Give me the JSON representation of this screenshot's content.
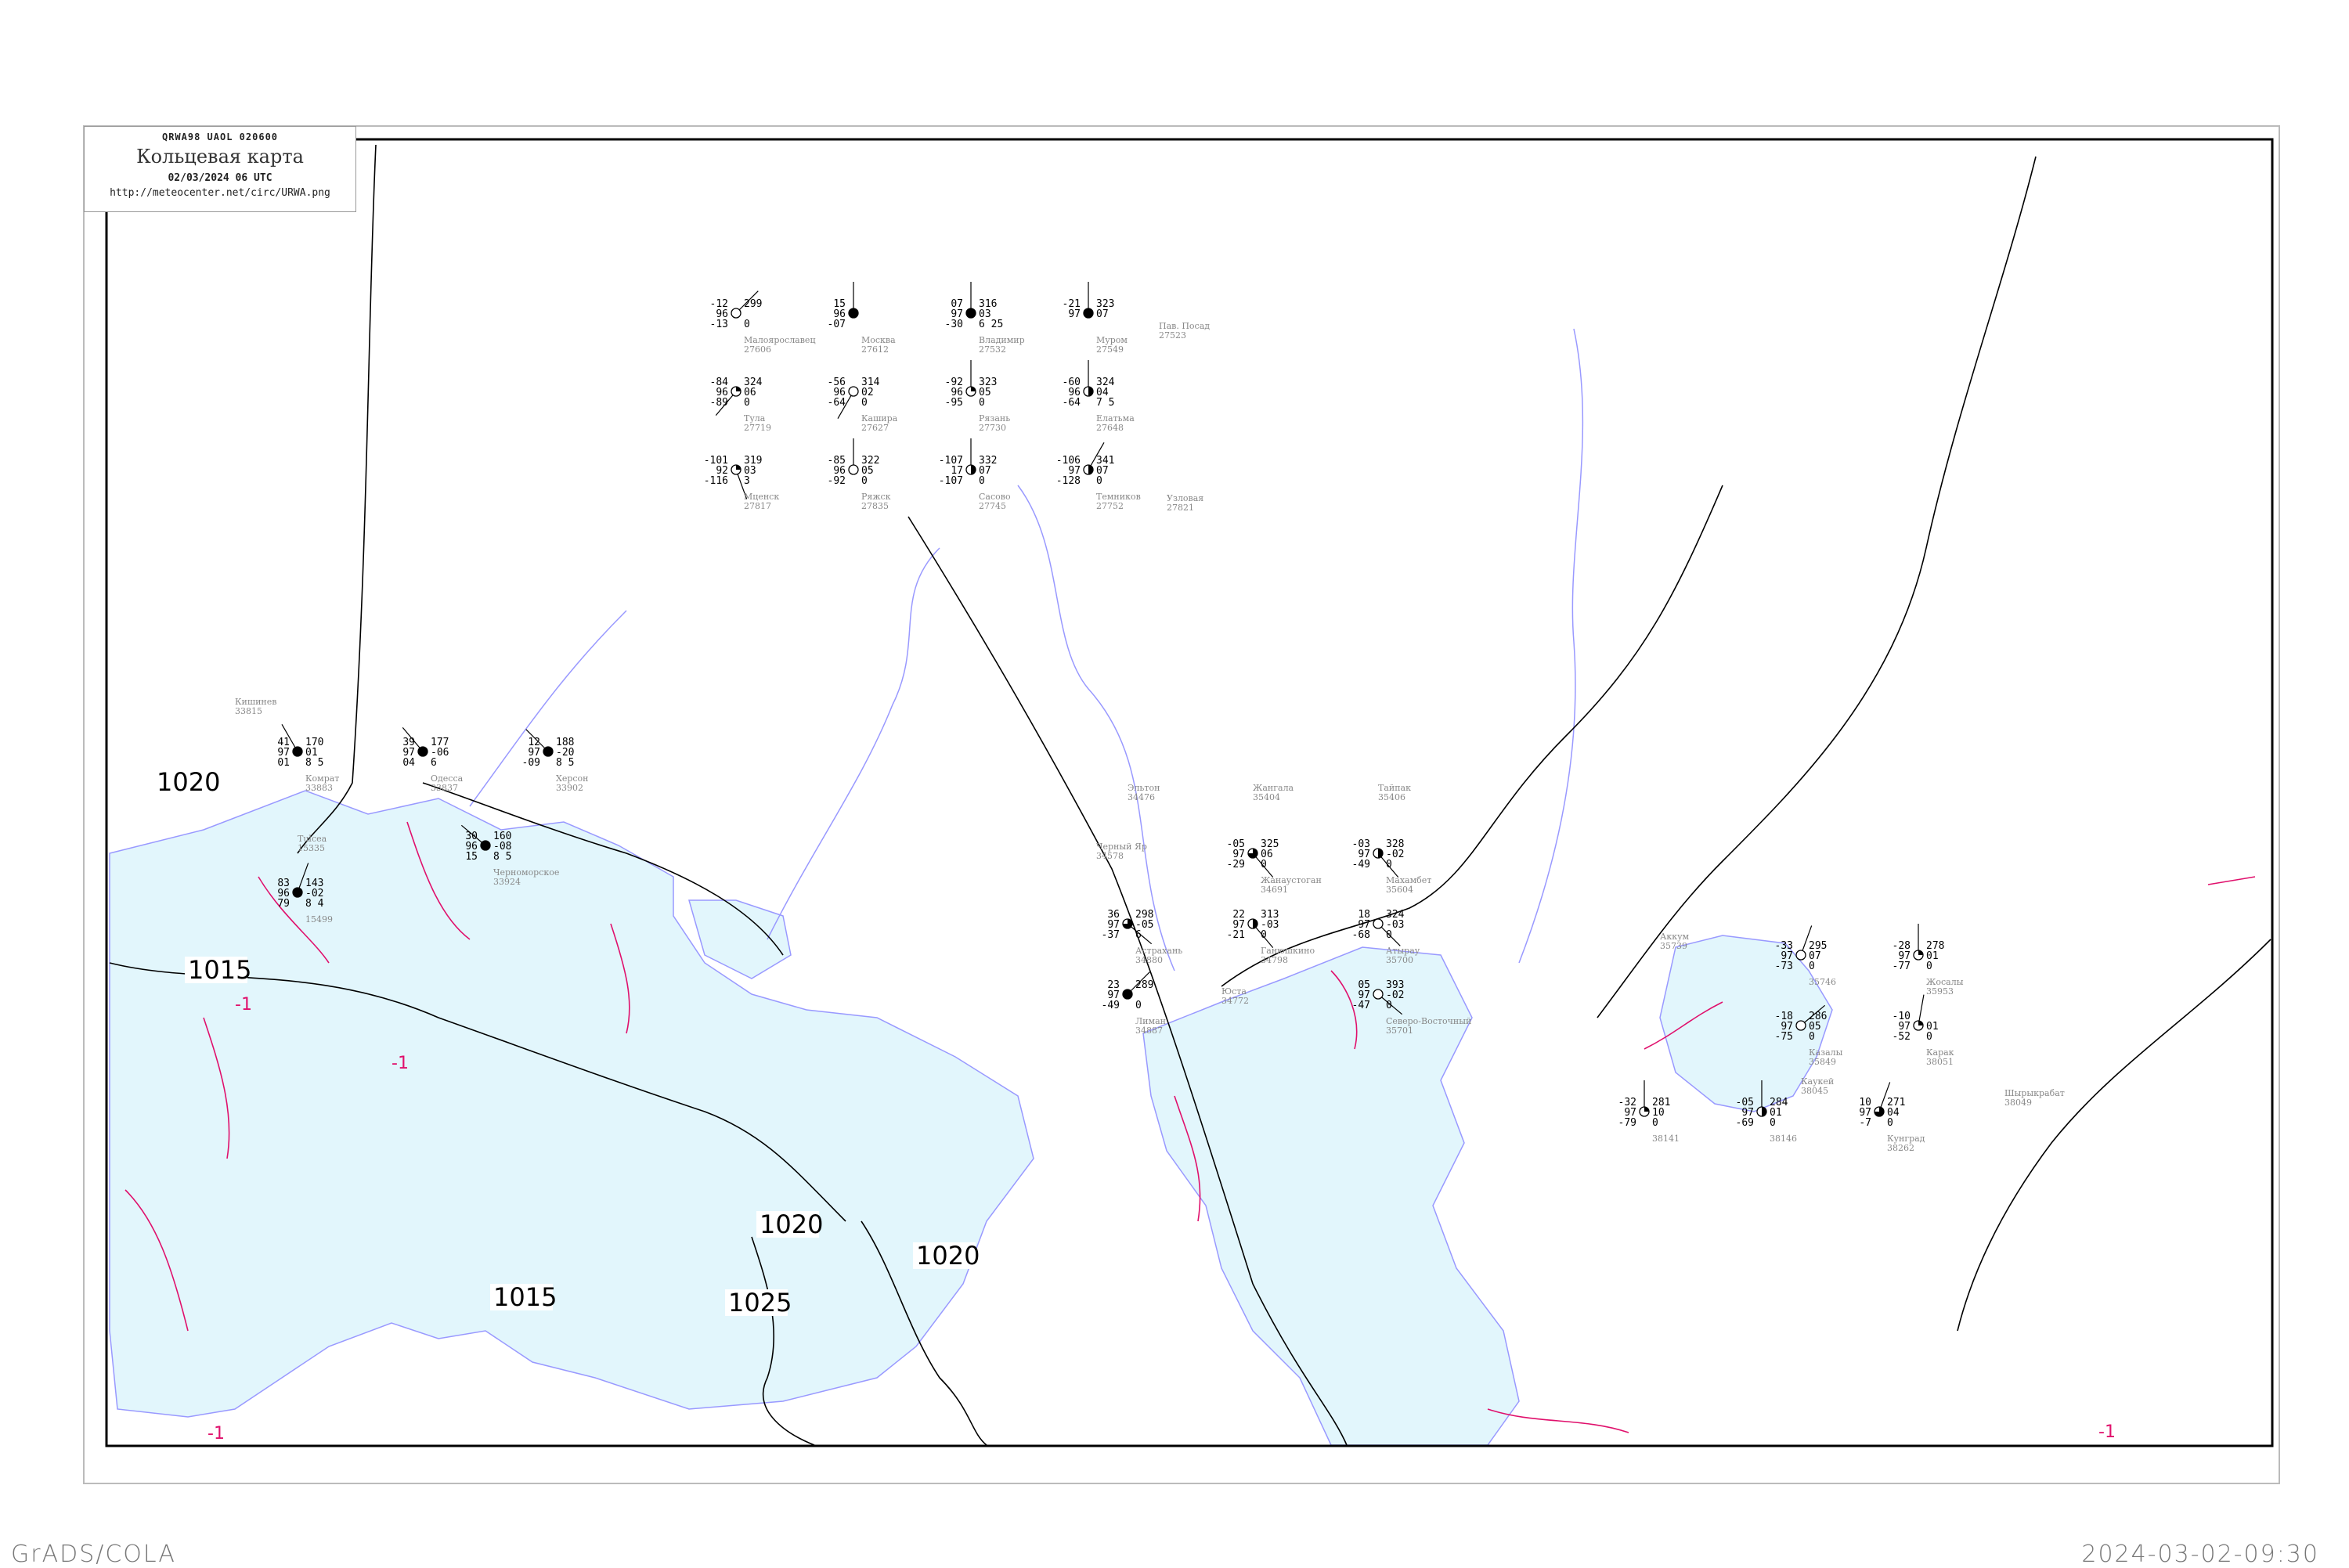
{
  "header": {
    "code": "QRWA98   UAOL   020600",
    "title": "Кольцевая карта",
    "datetime": "02/03/2024 06 UTC",
    "url": "http://meteocenter.net/circ/URWA.png"
  },
  "footer": {
    "left": "GrADS/COLA",
    "right": "2024-03-02-09:30"
  },
  "colors": {
    "isobar": "#000000",
    "isallobar": "#e0106c",
    "water": "#e2f6fc",
    "coastline": "#9999ff",
    "station_name": "#888888",
    "fog_highlight": "#fff59a",
    "precip_highlight": "#3399ff"
  },
  "isobar_labels": [
    "1020",
    "1015",
    "1015",
    "1020",
    "1025",
    "1020"
  ],
  "isallobar_labels": [
    "-1",
    "-1",
    "-1",
    "-1"
  ],
  "stations": [
    {
      "name": "Комрат",
      "id": "33883",
      "tl": "41",
      "ml": "97",
      "bl": "01",
      "tr": "170",
      "mr": "01",
      "br": "8 5",
      "cover": 1,
      "wind_dir": 330
    },
    {
      "name": "Одесса",
      "id": "33837",
      "tl": "39",
      "ml": "97",
      "bl": "04",
      "tr": "177",
      "mr": "-06",
      "br": "6",
      "cover": 1,
      "wind_dir": 320
    },
    {
      "name": "Херсон",
      "id": "33902",
      "tl": "12",
      "ml": "97",
      "bl": "-09",
      "tr": "188",
      "mr": "-20",
      "br": "8 5",
      "cover": 1,
      "wind_dir": 315
    },
    {
      "name": "Черноморское",
      "id": "33924",
      "tl": "30",
      "ml": "96",
      "bl": "15",
      "tr": "160",
      "mr": "-08",
      "br": "8 5",
      "cover": 1,
      "wind_dir": 310
    },
    {
      "name": "",
      "id": "15499",
      "tl": "83",
      "ml": "96",
      "bl": "79",
      "tr": "143",
      "mr": "-02",
      "br": "8 4",
      "cover": 1,
      "wind_dir": 20
    },
    {
      "name": "Жанаустоган",
      "id": "34691",
      "tl": "-05",
      "ml": "97",
      "bl": "-29",
      "tr": "325",
      "mr": "06",
      "br": "0",
      "cover": 0.75,
      "wind_dir": 140
    },
    {
      "name": "Ганюшкино",
      "id": "34798",
      "tl": "22",
      "ml": "97",
      "bl": "-21",
      "tr": "313",
      "mr": "-03",
      "br": "0",
      "cover": 0.5,
      "wind_dir": 140
    },
    {
      "name": "Астрахань",
      "id": "34880",
      "tl": "36",
      "ml": "97",
      "bl": "-37",
      "tr": "298",
      "mr": "-05",
      "br": "6",
      "cover": 0.75,
      "wind_dir": 130
    },
    {
      "name": "Лиман",
      "id": "34887",
      "tl": "23",
      "ml": "97",
      "bl": "-49",
      "tr": "289",
      "mr": "",
      "br": "0",
      "cover": 1,
      "wind_dir": 45
    },
    {
      "name": "Махамбет",
      "id": "35604",
      "tl": "-03",
      "ml": "97",
      "bl": "-49",
      "tr": "328",
      "mr": "-02",
      "br": "0",
      "cover": 0.5,
      "wind_dir": 140
    },
    {
      "name": "Атырау",
      "id": "35700",
      "tl": "18",
      "ml": "97",
      "bl": "-68",
      "tr": "324",
      "mr": "-03",
      "br": "0",
      "cover": 0,
      "wind_dir": 135
    },
    {
      "name": "Северо-Восточный",
      "id": "35701",
      "tl": "05",
      "ml": "97",
      "bl": "-47",
      "tr": "393",
      "mr": "-02",
      "br": "0",
      "cover": 0,
      "wind_dir": 130
    },
    {
      "name": "Москва",
      "id": "27612",
      "tl": "15",
      "ml": "96",
      "bl": "-07",
      "tr": "",
      "mr": "",
      "br": "",
      "cover": 1,
      "wind_dir": 0
    },
    {
      "name": "Владимир",
      "id": "27532",
      "tl": "07",
      "ml": "97",
      "bl": "-30",
      "tr": "316",
      "mr": "03",
      "br": "6 25",
      "cover": 1,
      "wind_dir": 0
    },
    {
      "name": "Малоярославец",
      "id": "27606",
      "tl": "-12",
      "ml": "96",
      "bl": "-13",
      "tr": "299",
      "mr": "",
      "br": "0",
      "cover": 0,
      "wind_dir": 45
    },
    {
      "name": "Кашира",
      "id": "27627",
      "tl": "-56",
      "ml": "96",
      "bl": "-64",
      "tr": "314",
      "mr": "02",
      "br": "0",
      "cover": 0,
      "wind_dir": 210
    },
    {
      "name": "Рязань",
      "id": "27730",
      "tl": "-92",
      "ml": "96",
      "bl": "-95",
      "tr": "323",
      "mr": "05",
      "br": "0",
      "cover": 0.25,
      "wind_dir": 0
    },
    {
      "name": "Тула",
      "id": "27719",
      "tl": "-84",
      "ml": "96",
      "bl": "-89",
      "tr": "324",
      "mr": "06",
      "br": "0",
      "cover": 0.25,
      "wind_dir": 220
    },
    {
      "name": "Сасово",
      "id": "27745",
      "tl": "-107",
      "ml": "17",
      "bl": "-107",
      "tr": "332",
      "mr": "07",
      "br": "0",
      "cover": 0.5,
      "wind_dir": 0
    },
    {
      "name": "Муром",
      "id": "27549",
      "tl": "-21",
      "ml": "97",
      "bl": "",
      "tr": "323",
      "mr": "07",
      "br": "",
      "cover": 1,
      "wind_dir": 0
    },
    {
      "name": "Елатьма",
      "id": "27648",
      "tl": "-60",
      "ml": "96",
      "bl": "-64",
      "tr": "324",
      "mr": "04",
      "br": "7 5",
      "cover": 0.5,
      "wind_dir": 0
    },
    {
      "name": "Темников",
      "id": "27752",
      "tl": "-106",
      "ml": "97",
      "bl": "-128",
      "tr": "341",
      "mr": "07",
      "br": "0",
      "cover": 0.5,
      "wind_dir": 30
    },
    {
      "name": "Ряжск",
      "id": "27835",
      "tl": "-85",
      "ml": "96",
      "bl": "-92",
      "tr": "322",
      "mr": "05",
      "br": "0",
      "cover": 0,
      "wind_dir": 0
    },
    {
      "name": "Мценск",
      "id": "27817",
      "tl": "-101",
      "ml": "92",
      "bl": "-116",
      "tr": "319",
      "mr": "03",
      "br": "3",
      "cover": 0.25,
      "wind_dir": 160
    },
    {
      "name": "Казалы",
      "id": "35849",
      "tl": "-18",
      "ml": "97",
      "bl": "-75",
      "tr": "286",
      "mr": "05",
      "br": "0",
      "cover": 0,
      "wind_dir": 50
    },
    {
      "name": "",
      "id": "35746",
      "tl": "-33",
      "ml": "97",
      "bl": "-73",
      "tr": "295",
      "mr": "07",
      "br": "0",
      "cover": 0,
      "wind_dir": 20
    },
    {
      "name": "Карак",
      "id": "38051",
      "tl": "-10",
      "ml": "97",
      "bl": "-52",
      "tr": "",
      "mr": "01",
      "br": "0",
      "cover": 0.25,
      "wind_dir": 10
    },
    {
      "name": "Жосалы",
      "id": "35953",
      "tl": "-28",
      "ml": "97",
      "bl": "-77",
      "tr": "278",
      "mr": "01",
      "br": "0",
      "cover": 0.25,
      "wind_dir": 0
    },
    {
      "name": "",
      "id": "38141",
      "tl": "-32",
      "ml": "97",
      "bl": "-79",
      "tr": "281",
      "mr": "10",
      "br": "0",
      "cover": 0.25,
      "wind_dir": 0
    },
    {
      "name": "",
      "id": "38146",
      "tl": "-05",
      "ml": "97",
      "bl": "-69",
      "tr": "284",
      "mr": "01",
      "br": "0",
      "cover": 0.5,
      "wind_dir": 0
    },
    {
      "name": "Кунград",
      "id": "38262",
      "tl": "10",
      "ml": "97",
      "bl": "-7",
      "tr": "271",
      "mr": "04",
      "br": "0",
      "cover": 0.75,
      "wind_dir": 20
    }
  ],
  "place_labels": [
    {
      "name": "Кишинев",
      "id": "33815"
    },
    {
      "name": "Tulcea",
      "id": "15335"
    },
    {
      "name": "Эльтон",
      "id": "34476"
    },
    {
      "name": "Жангала",
      "id": "35404"
    },
    {
      "name": "Тайпак",
      "id": "35406"
    },
    {
      "name": "Черный Яр",
      "id": "34578"
    },
    {
      "name": "Юста",
      "id": "34772"
    },
    {
      "name": "Пав. Посад",
      "id": "27523"
    },
    {
      "name": "Узловая",
      "id": "27821"
    },
    {
      "name": "Каукей",
      "id": "38045"
    },
    {
      "name": "Шырыкрабат",
      "id": "38049"
    },
    {
      "name": "Аккум",
      "id": "35739"
    }
  ]
}
